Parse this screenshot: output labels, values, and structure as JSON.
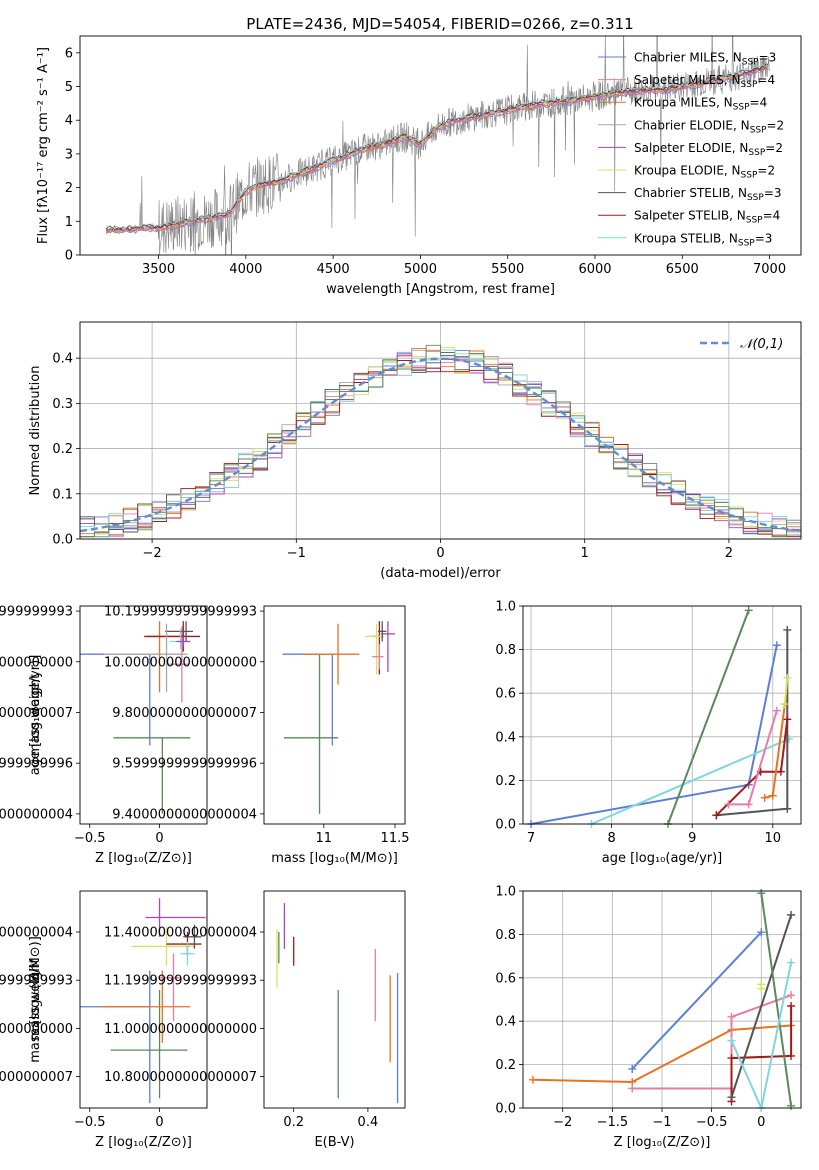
{
  "figure": {
    "title": "PLATE=2436, MJD=54054, FIBERID=0266, z=0.311"
  },
  "colors": {
    "model_colors": [
      "#5b7fd6",
      "#e87ba6",
      "#e8731f",
      "#a8a8a8",
      "#a845c4",
      "#d8e060",
      "#545454",
      "#a81818",
      "#7fd6e0"
    ],
    "extra_green": "#5a8a5a",
    "data_gray": "#808080",
    "normal_curve": "#5b8fd6"
  },
  "chart_data": [
    {
      "id": "spectrum",
      "type": "line",
      "xlabel": "wavelength [Angstrom, rest frame]",
      "ylabel": "Flux [fλ10⁻¹⁷ erg cm⁻² s⁻¹ A⁻¹]",
      "xlim": [
        3050,
        7180
      ],
      "ylim": [
        0,
        6.5
      ],
      "xticks": [
        3500,
        4000,
        4500,
        5000,
        5500,
        6000,
        6500,
        7000
      ],
      "yticks": [
        0,
        1,
        2,
        3,
        4,
        5,
        6
      ],
      "continuum": {
        "x": [
          3200,
          3300,
          3400,
          3500,
          3600,
          3700,
          3800,
          3900,
          4000,
          4100,
          4200,
          4300,
          4400,
          4500,
          4600,
          4700,
          4800,
          4900,
          5000,
          5100,
          5200,
          5300,
          5400,
          5500,
          5600,
          5700,
          5800,
          5900,
          6000,
          6100,
          6200,
          6300,
          6400,
          6500,
          6600,
          6700,
          6800,
          6900,
          7000
        ],
        "y": [
          0.75,
          0.75,
          0.8,
          0.8,
          0.9,
          1.0,
          1.1,
          1.2,
          1.9,
          2.1,
          2.2,
          2.4,
          2.6,
          2.8,
          3.0,
          3.2,
          3.3,
          3.5,
          3.3,
          3.8,
          4.0,
          4.1,
          4.2,
          4.3,
          4.4,
          4.5,
          4.55,
          4.6,
          4.7,
          4.8,
          4.85,
          4.9,
          4.9,
          5.0,
          5.1,
          5.2,
          5.3,
          5.45,
          5.6
        ]
      },
      "legend": [
        "Chabrier MILES, N_SSP=3",
        "Salpeter MILES, N_SSP=4",
        "Kroupa MILES, N_SSP=4",
        "Chabrier ELODIE, N_SSP=2",
        "Salpeter ELODIE, N_SSP=2",
        "Kroupa ELODIE, N_SSP=2",
        "Chabrier STELIB, N_SSP=3",
        "Salpeter STELIB, N_SSP=4",
        "Kroupa STELIB, N_SSP=3"
      ],
      "legend_colors": [
        "#5b7fd6",
        "#e87ba6",
        "#e8731f",
        "#a8a8a8",
        "#a845c4",
        "#d8e060",
        "#545454",
        "#a81818",
        "#7fd6e0"
      ],
      "legend_placement": "right"
    },
    {
      "id": "residuals",
      "type": "area",
      "xlabel": "(data-model)/error",
      "ylabel": "Normed distribution",
      "xlim": [
        -2.5,
        2.5
      ],
      "ylim": [
        0,
        0.48
      ],
      "xticks": [
        -2,
        -1,
        0,
        1,
        2
      ],
      "yticks": [
        0.0,
        0.1,
        0.2,
        0.3,
        0.4
      ],
      "legend": [
        "𝒩(0,1)"
      ],
      "legend_placement": "upper right",
      "grid": true
    },
    {
      "id": "age_vs_Z",
      "type": "scatter",
      "xlabel": "Z [log₁₀(Z/Z⊙)]",
      "ylabel": "age  [log₁₀(age/yr)]",
      "xlim": [
        -0.57,
        0.34
      ],
      "ylim": [
        9.36,
        10.22
      ],
      "xticks": [
        -0.5,
        0.0
      ],
      "yticks": [
        9.4,
        9.6,
        9.8,
        10.0,
        10.2
      ],
      "points": [
        {
          "x": -0.07,
          "y": 10.03,
          "xerr": [
            0.5,
            0.0
          ],
          "yerr": [
            0.36,
            0.0
          ],
          "color": "#5b7fd6"
        },
        {
          "x": 0.16,
          "y": 9.99,
          "xerr": [
            0.1,
            0.05
          ],
          "yerr": [
            0.15,
            0.15
          ],
          "color": "#e87ba6"
        },
        {
          "x": 0.0,
          "y": 10.1,
          "xerr": [
            0.08,
            0.2
          ],
          "yerr": [
            0.22,
            0.06
          ],
          "color": "#e8731f"
        },
        {
          "x": 0.02,
          "y": 9.7,
          "xerr": [
            0.35,
            0.2
          ],
          "yerr": [
            0.3,
            0.0
          ],
          "color": "#5a8a5a"
        },
        {
          "x": 0.17,
          "y": 10.1,
          "xerr": [
            0.28,
            0.12
          ],
          "yerr": [
            0.06,
            0.06
          ],
          "color": "#a81818"
        },
        {
          "x": 0.19,
          "y": 10.12,
          "xerr": [
            0.15,
            0.05
          ],
          "yerr": [
            0.04,
            0.04
          ],
          "color": "#545454"
        },
        {
          "x": 0.15,
          "y": 10.08,
          "xerr": [
            0.08,
            0.05
          ],
          "yerr": [
            0.03,
            0.05
          ],
          "color": "#7fd6e0"
        },
        {
          "x": 0.17,
          "y": 10.08,
          "xerr": [
            0.05,
            0.05
          ],
          "yerr": [
            0.02,
            0.02
          ],
          "color": "#a845c4"
        },
        {
          "x": 0.05,
          "y": 10.03,
          "xerr": [
            0.45,
            0.15
          ],
          "yerr": [
            0.15,
            0.12
          ],
          "color": "#a8a8a8"
        }
      ]
    },
    {
      "id": "age_vs_mass",
      "type": "scatter",
      "xlabel": "mass [log₁₀(M/M⊙)]",
      "ylabel": "",
      "xlim": [
        10.58,
        11.57
      ],
      "ylim": [
        9.36,
        10.22
      ],
      "xticks": [
        11.0,
        11.5
      ],
      "yticks": [
        9.4,
        9.6,
        9.8,
        10.0,
        10.2
      ],
      "points": [
        {
          "x": 11.06,
          "y": 10.03,
          "xerr": [
            0.35,
            0.0
          ],
          "yerr": [
            0.36,
            0.0
          ],
          "color": "#5b7fd6"
        },
        {
          "x": 10.97,
          "y": 9.7,
          "xerr": [
            0.25,
            0.13
          ],
          "yerr": [
            0.3,
            0.33
          ],
          "color": "#5a8a5a"
        },
        {
          "x": 11.1,
          "y": 10.03,
          "xerr": [
            0.25,
            0.15
          ],
          "yerr": [
            0.12,
            0.12
          ],
          "color": "#e8731f"
        },
        {
          "x": 11.39,
          "y": 10.1,
          "xerr": [
            0.05,
            0.0
          ],
          "yerr": [
            0.15,
            0.06
          ],
          "color": "#a81818"
        },
        {
          "x": 11.45,
          "y": 10.11,
          "xerr": [
            0.05,
            0.05
          ],
          "yerr": [
            0.15,
            0.05
          ],
          "color": "#a845c4"
        },
        {
          "x": 11.37,
          "y": 10.1,
          "xerr": [
            0.08,
            0.05
          ],
          "yerr": [
            0.15,
            0.05
          ],
          "color": "#d8e060"
        },
        {
          "x": 11.41,
          "y": 10.12,
          "xerr": [
            0.03,
            0.03
          ],
          "yerr": [
            0.04,
            0.04
          ],
          "color": "#545454"
        },
        {
          "x": 11.39,
          "y": 10.02,
          "xerr": [
            0.05,
            0.03
          ],
          "yerr": [
            0.05,
            0.05
          ],
          "color": "#e87ba6"
        }
      ]
    },
    {
      "id": "mass_weight_vs_age",
      "type": "line",
      "xlabel": "age  [log₁₀(age/yr)]",
      "ylabel": "mass weight",
      "xlim": [
        6.9,
        10.35
      ],
      "ylim": [
        0.0,
        1.0
      ],
      "xticks": [
        7,
        8,
        9,
        10
      ],
      "yticks": [
        0.0,
        0.2,
        0.4,
        0.6,
        0.8,
        1.0
      ],
      "series": [
        {
          "x": [
            7.0,
            9.7,
            10.05
          ],
          "y": [
            0.0,
            0.18,
            0.82
          ],
          "color": "#5b7fd6"
        },
        {
          "x": [
            7.75,
            10.2
          ],
          "y": [
            0.0,
            0.39
          ],
          "color": "#7fd6e0"
        },
        {
          "x": [
            8.7,
            9.7
          ],
          "y": [
            0.0,
            0.98
          ],
          "color": "#5a8a5a"
        },
        {
          "x": [
            9.3,
            10.18,
            10.18
          ],
          "y": [
            0.04,
            0.07,
            0.89
          ],
          "color": "#545454"
        },
        {
          "x": [
            9.3,
            9.85,
            10.1,
            10.18
          ],
          "y": [
            0.04,
            0.24,
            0.24,
            0.48
          ],
          "color": "#a81818"
        },
        {
          "x": [
            9.45,
            9.7,
            10.05
          ],
          "y": [
            0.09,
            0.09,
            0.52
          ],
          "color": "#e87ba6"
        },
        {
          "x": [
            9.9,
            10.0,
            10.15
          ],
          "y": [
            0.12,
            0.13,
            0.55
          ],
          "color": "#e8731f"
        },
        {
          "x": [
            10.15,
            10.18
          ],
          "y": [
            0.55,
            0.67
          ],
          "color": "#d8e060"
        }
      ],
      "grid": true
    },
    {
      "id": "mass_vs_Z",
      "type": "scatter",
      "xlabel": "Z [log₁₀(Z/Z⊙)]",
      "ylabel": "mass [log₁₀(M/M⊙)]",
      "xlim": [
        -0.57,
        0.34
      ],
      "ylim": [
        10.67,
        11.57
      ],
      "xticks": [
        -0.5,
        0.0
      ],
      "yticks": [
        10.8,
        11.0,
        11.2,
        11.4
      ],
      "points": [
        {
          "x": -0.07,
          "y": 11.09,
          "xerr": [
            0.5,
            0.0
          ],
          "yerr": [
            0.4,
            0.15
          ],
          "color": "#5b7fd6"
        },
        {
          "x": 0.0,
          "y": 10.91,
          "xerr": [
            0.35,
            0.2
          ],
          "yerr": [
            0.2,
            0.25
          ],
          "color": "#5a8a5a"
        },
        {
          "x": 0.02,
          "y": 11.09,
          "xerr": [
            0.45,
            0.2
          ],
          "yerr": [
            0.15,
            0.15
          ],
          "color": "#e8731f"
        },
        {
          "x": 0.0,
          "y": 11.46,
          "xerr": [
            0.1,
            0.33
          ],
          "yerr": [
            0.08,
            0.08
          ],
          "color": "#a845c4"
        },
        {
          "x": 0.05,
          "y": 11.34,
          "xerr": [
            0.25,
            0.2
          ],
          "yerr": [
            0.08,
            0.08
          ],
          "color": "#d8e060"
        },
        {
          "x": 0.2,
          "y": 11.35,
          "xerr": [
            0.15,
            0.1
          ],
          "yerr": [
            0.05,
            0.05
          ],
          "color": "#a81818"
        },
        {
          "x": 0.25,
          "y": 11.38,
          "xerr": [
            0.08,
            0.05
          ],
          "yerr": [
            0.05,
            0.05
          ],
          "color": "#545454"
        },
        {
          "x": 0.1,
          "y": 11.21,
          "xerr": [
            0.1,
            0.05
          ],
          "yerr": [
            0.18,
            0.1
          ],
          "color": "#e87ba6"
        },
        {
          "x": 0.2,
          "y": 11.31,
          "xerr": [
            0.05,
            0.05
          ],
          "yerr": [
            0.05,
            0.05
          ],
          "color": "#7fd6e0"
        }
      ]
    },
    {
      "id": "mass_vs_EBV",
      "type": "scatter",
      "xlabel": "E(B-V)",
      "ylabel": "",
      "xlim": [
        0.12,
        0.5
      ],
      "ylim": [
        10.67,
        11.57
      ],
      "xticks": [
        0.2,
        0.4
      ],
      "yticks": [
        10.8,
        11.0,
        11.2,
        11.4
      ],
      "points": [
        {
          "x": 0.155,
          "y": 11.29,
          "yerr": [
            0.12,
            0.12
          ],
          "color": "#d8e060"
        },
        {
          "x": 0.16,
          "y": 11.32,
          "yerr": [
            0.05,
            0.08
          ],
          "color": "#5a8a5a"
        },
        {
          "x": 0.175,
          "y": 11.43,
          "yerr": [
            0.1,
            0.09
          ],
          "color": "#a845c4"
        },
        {
          "x": 0.2,
          "y": 11.32,
          "yerr": [
            0.06,
            0.06
          ],
          "color": "#a81818"
        },
        {
          "x": 0.32,
          "y": 10.94,
          "yerr": [
            0.23,
            0.22
          ],
          "color": "#5a8a5a"
        },
        {
          "x": 0.42,
          "y": 11.18,
          "yerr": [
            0.15,
            0.15
          ],
          "color": "#e87ba6"
        },
        {
          "x": 0.46,
          "y": 11.04,
          "yerr": [
            0.18,
            0.18
          ],
          "color": "#e8731f"
        },
        {
          "x": 0.48,
          "y": 10.96,
          "yerr": [
            0.27,
            0.27
          ],
          "color": "#5b7fd6"
        }
      ]
    },
    {
      "id": "mass_weight_vs_Z",
      "type": "line",
      "xlabel": "Z [log₁₀(Z/Z⊙)]",
      "ylabel": "mass weight",
      "xlim": [
        -2.4,
        0.4
      ],
      "ylim": [
        0.0,
        1.0
      ],
      "xticks": [
        -2.0,
        -1.5,
        -1.0,
        -0.5,
        0.0
      ],
      "yticks": [
        0.0,
        0.2,
        0.4,
        0.6,
        0.8,
        1.0
      ],
      "series": [
        {
          "x": [
            -1.3,
            0.0
          ],
          "y": [
            0.18,
            0.81
          ],
          "color": "#5b7fd6"
        },
        {
          "x": [
            -2.3,
            -1.3,
            -0.3,
            0.3
          ],
          "y": [
            0.13,
            0.12,
            0.36,
            0.38
          ],
          "color": "#e8731f"
        },
        {
          "x": [
            -1.3,
            -0.3,
            -0.3,
            0.3
          ],
          "y": [
            0.09,
            0.09,
            0.42,
            0.52
          ],
          "color": "#e87ba6"
        },
        {
          "x": [
            -0.3,
            -0.3,
            0.3,
            0.3
          ],
          "y": [
            0.03,
            0.23,
            0.24,
            0.47
          ],
          "color": "#a81818"
        },
        {
          "x": [
            -0.3,
            0.3
          ],
          "y": [
            0.05,
            0.89
          ],
          "color": "#545454"
        },
        {
          "x": [
            0.0,
            0.3
          ],
          "y": [
            0.99,
            0.01
          ],
          "color": "#5a8a5a"
        },
        {
          "x": [
            -0.3,
            0.0,
            0.3
          ],
          "y": [
            0.31,
            0.0,
            0.67
          ],
          "color": "#7fd6e0"
        },
        {
          "x": [
            0.0,
            0.0
          ],
          "y": [
            0.55,
            0.57
          ],
          "color": "#d8e060"
        }
      ],
      "grid": true
    }
  ]
}
